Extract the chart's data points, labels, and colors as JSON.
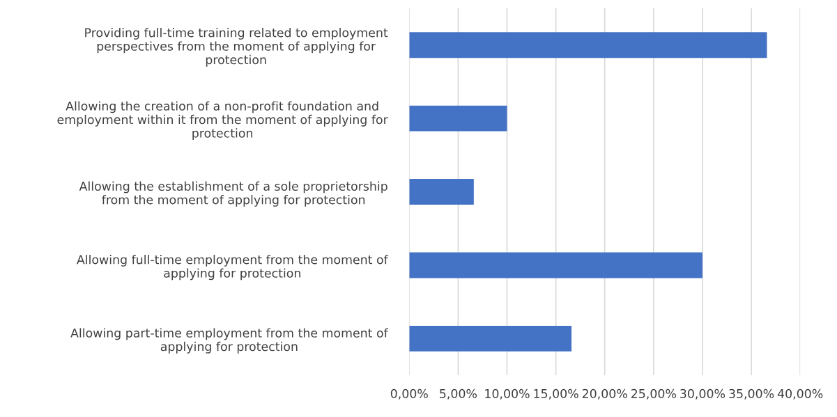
{
  "chart_data": {
    "type": "bar",
    "orientation": "horizontal",
    "categories": [
      "Providing full-time training related to employment\nperspectives from the moment of applying for\nprotection",
      "Allowing the creation of a non-profit foundation and\nemployment within it from the moment of applying for\nprotection",
      "Allowing the establishment of a sole proprietorship\nfrom the moment of applying for protection",
      "Allowing full-time employment from the moment of\napplying for protection",
      "Allowing part-time employment from the moment of\napplying for protection"
    ],
    "values": [
      36.6,
      10.0,
      6.6,
      30.0,
      16.6
    ],
    "color": "#4472c4",
    "xlim": [
      0,
      40
    ],
    "xticks": [
      {
        "value": 0,
        "label": "0,00%"
      },
      {
        "value": 5,
        "label": "5,00%"
      },
      {
        "value": 10,
        "label": "10,00%"
      },
      {
        "value": 15,
        "label": "15,00%"
      },
      {
        "value": 20,
        "label": "20,00%"
      },
      {
        "value": 25,
        "label": "25,00%"
      },
      {
        "value": 30,
        "label": "30,00%"
      },
      {
        "value": 35,
        "label": "35,00%"
      },
      {
        "value": 40,
        "label": "40,00%"
      }
    ],
    "grid": "x"
  }
}
